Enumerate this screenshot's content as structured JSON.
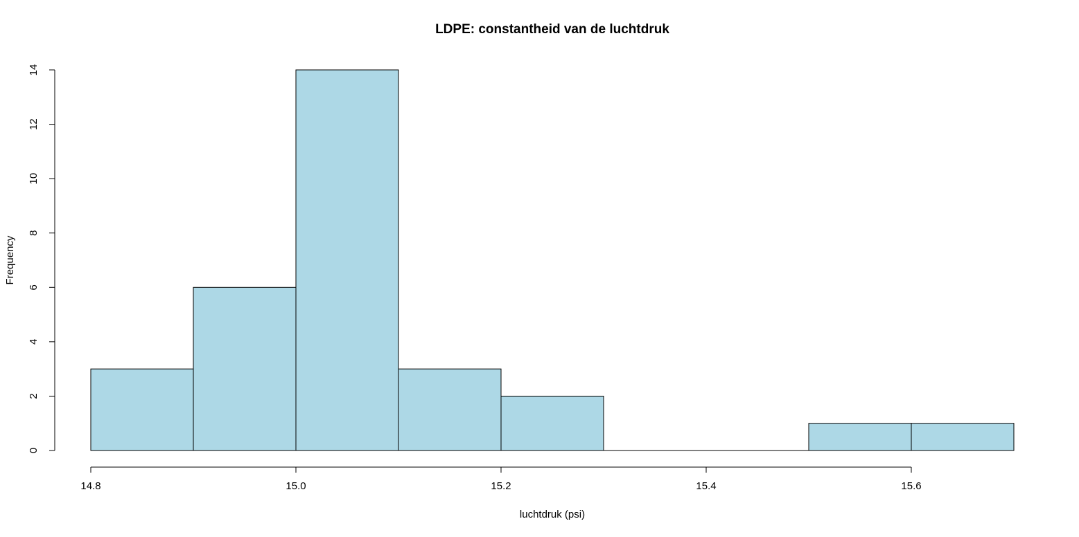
{
  "chart_data": {
    "type": "histogram",
    "title": "LDPE: constantheid van de luchtdruk",
    "xlabel": "luchtdruk (psi)",
    "ylabel": "Frequency",
    "bins": [
      {
        "start": 14.8,
        "end": 14.9,
        "count": 3
      },
      {
        "start": 14.9,
        "end": 15.0,
        "count": 6
      },
      {
        "start": 15.0,
        "end": 15.1,
        "count": 14
      },
      {
        "start": 15.1,
        "end": 15.2,
        "count": 3
      },
      {
        "start": 15.2,
        "end": 15.3,
        "count": 2
      },
      {
        "start": 15.3,
        "end": 15.4,
        "count": 0
      },
      {
        "start": 15.4,
        "end": 15.5,
        "count": 0
      },
      {
        "start": 15.5,
        "end": 15.6,
        "count": 1
      },
      {
        "start": 15.6,
        "end": 15.7,
        "count": 1
      }
    ],
    "xlim": [
      14.8,
      15.7
    ],
    "ylim": [
      0,
      14
    ],
    "x_ticks": [
      14.8,
      15.0,
      15.2,
      15.4,
      15.6
    ],
    "x_tick_labels": [
      "14.8",
      "15.0",
      "15.2",
      "15.4",
      "15.6"
    ],
    "y_ticks": [
      0,
      2,
      4,
      6,
      8,
      10,
      12,
      14
    ],
    "y_tick_labels": [
      "0",
      "2",
      "4",
      "6",
      "8",
      "10",
      "12",
      "14"
    ],
    "bar_color": "#add8e6",
    "border_color": "#000000",
    "grid": false,
    "legend": "none"
  }
}
